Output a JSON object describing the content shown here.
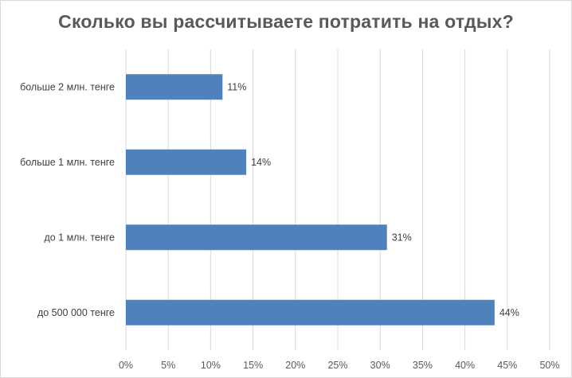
{
  "chart_data": {
    "type": "bar",
    "orientation": "horizontal",
    "title": "Сколько вы рассчитываете потратить на отдых?",
    "categories": [
      "больше 2 млн. тенге",
      "больше 1 млн. тенге",
      "до 1 млн. тенге",
      "до 500 000 тенге"
    ],
    "values": [
      11.4,
      14.2,
      30.8,
      43.5
    ],
    "data_labels": [
      "11%",
      "14%",
      "31%",
      "44%"
    ],
    "xlim": [
      0,
      50
    ],
    "x_ticks": [
      0,
      5,
      10,
      15,
      20,
      25,
      30,
      35,
      40,
      45,
      50
    ],
    "x_tick_labels": [
      "0%",
      "5%",
      "10%",
      "15%",
      "20%",
      "25%",
      "30%",
      "35%",
      "40%",
      "45%",
      "50%"
    ],
    "bar_color": "#4f81bd",
    "grid": true,
    "legend": "none"
  }
}
